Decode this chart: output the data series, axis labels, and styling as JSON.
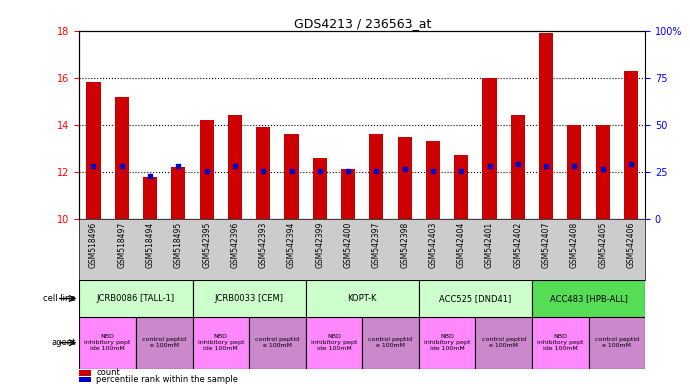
{
  "title": "GDS4213 / 236563_at",
  "samples": [
    "GSM518496",
    "GSM518497",
    "GSM518494",
    "GSM518495",
    "GSM542395",
    "GSM542396",
    "GSM542393",
    "GSM542394",
    "GSM542399",
    "GSM542400",
    "GSM542397",
    "GSM542398",
    "GSM542403",
    "GSM542404",
    "GSM542401",
    "GSM542402",
    "GSM542407",
    "GSM542408",
    "GSM542405",
    "GSM542406"
  ],
  "bar_values": [
    15.8,
    15.2,
    11.8,
    12.2,
    14.2,
    14.4,
    13.9,
    13.6,
    12.6,
    12.1,
    13.6,
    13.5,
    13.3,
    12.7,
    16.0,
    14.4,
    17.9,
    14.0,
    14.0,
    16.3
  ],
  "dot_values": [
    12.25,
    12.25,
    11.82,
    12.25,
    12.05,
    12.25,
    12.05,
    12.05,
    12.05,
    12.05,
    12.05,
    12.12,
    12.05,
    12.05,
    12.25,
    12.32,
    12.25,
    12.25,
    12.12,
    12.32
  ],
  "ylim_left": [
    10,
    18
  ],
  "ylim_right": [
    0,
    100
  ],
  "yticks_left": [
    10,
    12,
    14,
    16,
    18
  ],
  "yticks_right": [
    0,
    25,
    50,
    75,
    100
  ],
  "bar_color": "#cc0000",
  "dot_color": "#0000cc",
  "cell_lines": [
    {
      "label": "JCRB0086 [TALL-1]",
      "start": 0,
      "end": 4,
      "color": "#ccffcc"
    },
    {
      "label": "JCRB0033 [CEM]",
      "start": 4,
      "end": 8,
      "color": "#ccffcc"
    },
    {
      "label": "KOPT-K",
      "start": 8,
      "end": 12,
      "color": "#ccffcc"
    },
    {
      "label": "ACC525 [DND41]",
      "start": 12,
      "end": 16,
      "color": "#ccffcc"
    },
    {
      "label": "ACC483 [HPB-ALL]",
      "start": 16,
      "end": 20,
      "color": "#55dd55"
    }
  ],
  "agents": [
    {
      "label": "NBD\ninhibitory pept\nide 100mM",
      "start": 0,
      "end": 2,
      "color": "#ff88ff"
    },
    {
      "label": "control peptid\ne 100mM",
      "start": 2,
      "end": 4,
      "color": "#cc88cc"
    },
    {
      "label": "NBD\ninhibitory pept\nide 100mM",
      "start": 4,
      "end": 6,
      "color": "#ff88ff"
    },
    {
      "label": "control peptid\ne 100mM",
      "start": 6,
      "end": 8,
      "color": "#cc88cc"
    },
    {
      "label": "NBD\ninhibitory pept\nide 100mM",
      "start": 8,
      "end": 10,
      "color": "#ff88ff"
    },
    {
      "label": "control peptid\ne 100mM",
      "start": 10,
      "end": 12,
      "color": "#cc88cc"
    },
    {
      "label": "NBD\ninhibitory pept\nide 100mM",
      "start": 12,
      "end": 14,
      "color": "#ff88ff"
    },
    {
      "label": "control peptid\ne 100mM",
      "start": 14,
      "end": 16,
      "color": "#cc88cc"
    },
    {
      "label": "NBD\ninhibitory pept\nide 100mM",
      "start": 16,
      "end": 18,
      "color": "#ff88ff"
    },
    {
      "label": "control peptid\ne 100mM",
      "start": 18,
      "end": 20,
      "color": "#cc88cc"
    }
  ],
  "tick_bg_color": "#cccccc",
  "legend_items": [
    {
      "label": "count",
      "color": "#cc0000"
    },
    {
      "label": "percentile rank within the sample",
      "color": "#0000cc"
    }
  ]
}
